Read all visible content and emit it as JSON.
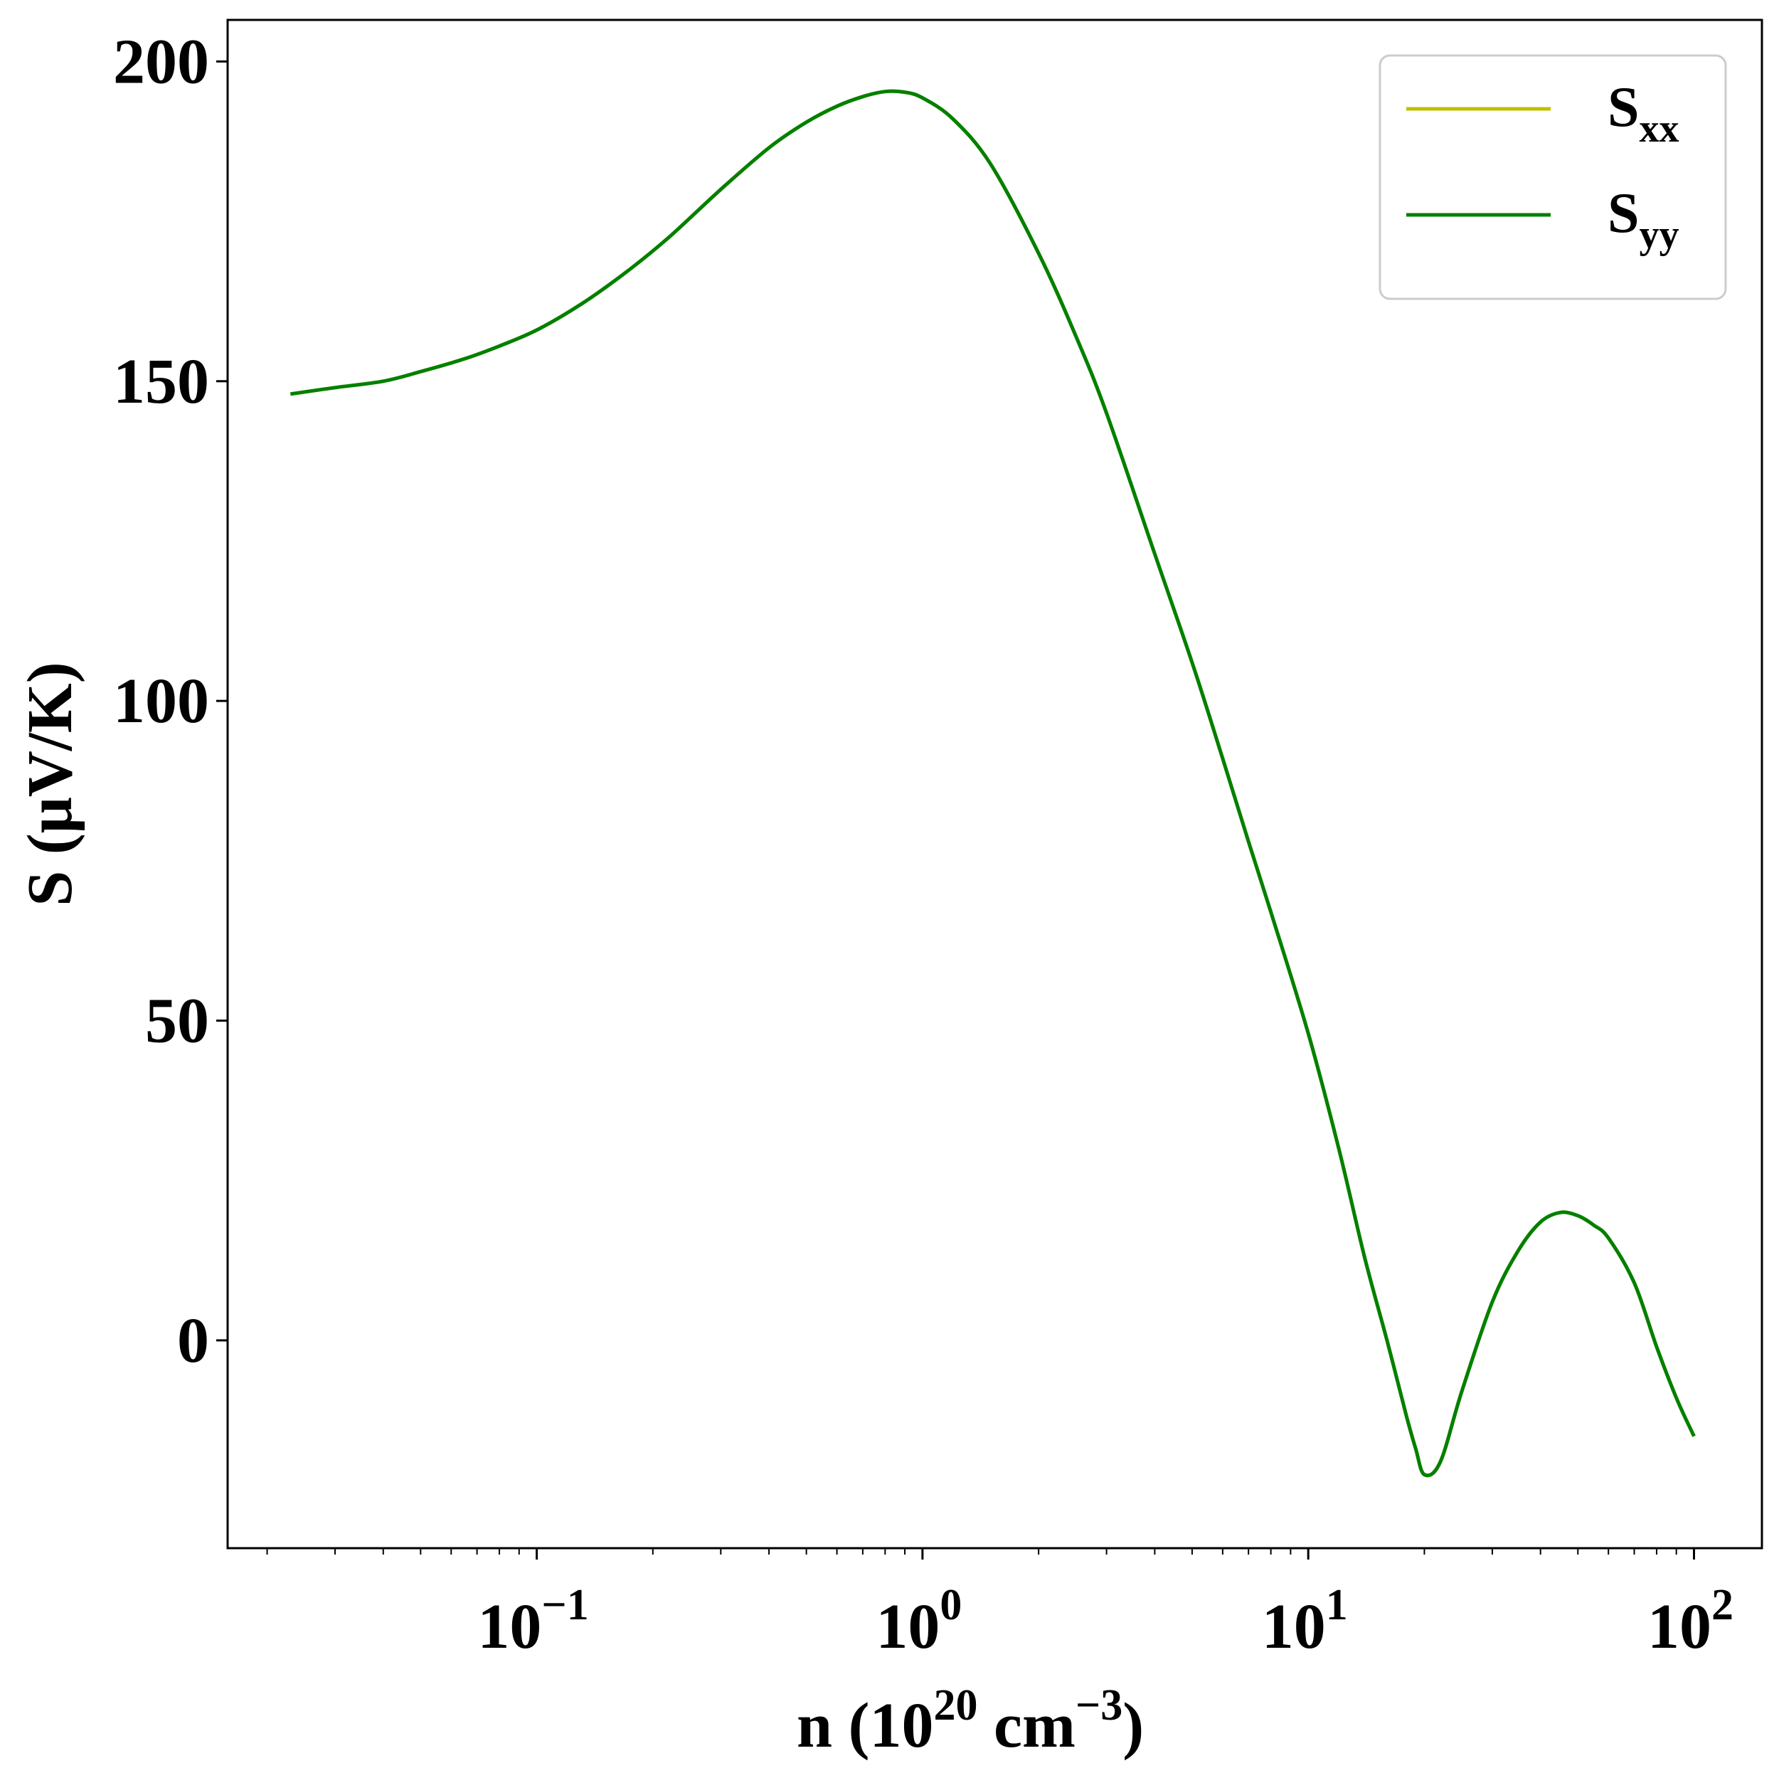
{
  "chart_data": {
    "type": "line",
    "xscale": "log",
    "xlim": [
      0.0158,
      150
    ],
    "ylim": [
      -32.5,
      206.5
    ],
    "grid": false,
    "legend_position": "top-right",
    "xlabel": {
      "base": "n (10",
      "sup1": "20",
      "mid": " cm",
      "sup2": "−3",
      "end": ")"
    },
    "ylabel": "S (μV/K)",
    "yticks": [
      {
        "value": 0,
        "label": "0"
      },
      {
        "value": 50,
        "label": "50"
      },
      {
        "value": 100,
        "label": "100"
      },
      {
        "value": 150,
        "label": "150"
      },
      {
        "value": 200,
        "label": "200"
      }
    ],
    "xticks": [
      {
        "value": 0.1,
        "base": "10",
        "exp": "−1"
      },
      {
        "value": 1,
        "base": "10",
        "exp": "0"
      },
      {
        "value": 10,
        "base": "10",
        "exp": "1"
      },
      {
        "value": 100,
        "base": "10",
        "exp": "2"
      }
    ],
    "series": [
      {
        "name": "S",
        "sub": "xx",
        "color": "#bfbf00",
        "x": [
          0.023,
          0.03,
          0.04,
          0.05,
          0.065,
          0.08,
          0.1,
          0.13,
          0.17,
          0.22,
          0.3,
          0.4,
          0.5,
          0.6,
          0.7,
          0.8,
          0.9,
          1.0,
          1.2,
          1.5,
          2.0,
          2.5,
          3.0,
          4.0,
          5.0,
          6.0,
          7.0,
          8.0,
          10,
          12,
          14,
          16,
          18,
          19,
          20,
          22,
          25,
          30,
          35,
          40,
          45,
          50,
          55,
          60,
          70,
          80,
          90,
          100
        ],
        "y": [
          148,
          149,
          150,
          151.5,
          153.5,
          155.5,
          158,
          162,
          167,
          172.5,
          180,
          186.5,
          190.5,
          193,
          194.5,
          195.3,
          195.2,
          194.3,
          191,
          184,
          170,
          157,
          145,
          123,
          106,
          91,
          78,
          67,
          48,
          30,
          13,
          0,
          -12,
          -17,
          -21,
          -19,
          -8,
          6,
          14,
          18.5,
          20,
          19.5,
          18,
          16,
          9,
          -1,
          -9,
          -15
        ]
      },
      {
        "name": "S",
        "sub": "yy",
        "color": "#008000",
        "x": [
          0.023,
          0.03,
          0.04,
          0.05,
          0.065,
          0.08,
          0.1,
          0.13,
          0.17,
          0.22,
          0.3,
          0.4,
          0.5,
          0.6,
          0.7,
          0.8,
          0.9,
          1.0,
          1.2,
          1.5,
          2.0,
          2.5,
          3.0,
          4.0,
          5.0,
          6.0,
          7.0,
          8.0,
          10,
          12,
          14,
          16,
          18,
          19,
          20,
          22,
          25,
          30,
          35,
          40,
          45,
          50,
          55,
          60,
          70,
          80,
          90,
          100
        ],
        "y": [
          148,
          149,
          150,
          151.5,
          153.5,
          155.5,
          158,
          162,
          167,
          172.5,
          180,
          186.5,
          190.5,
          193,
          194.5,
          195.3,
          195.2,
          194.3,
          191,
          184,
          170,
          157,
          145,
          123,
          106,
          91,
          78,
          67,
          48,
          30,
          13,
          0,
          -12,
          -17,
          -21,
          -19,
          -8,
          6,
          14,
          18.5,
          20,
          19.5,
          18,
          16,
          9,
          -1,
          -9,
          -15
        ]
      }
    ]
  }
}
